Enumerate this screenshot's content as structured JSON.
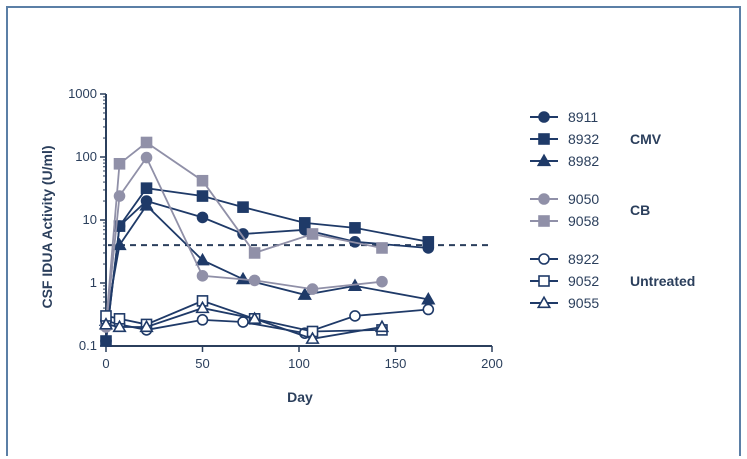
{
  "chart_data": {
    "type": "line",
    "title": "",
    "xlabel": "Day",
    "ylabel": "CSF IDUA Activity (U/ml)",
    "xlim": [
      0,
      200
    ],
    "ylim": [
      0.1,
      1000
    ],
    "yscale": "log",
    "x_ticks": [
      "0",
      "50",
      "100",
      "150",
      "200"
    ],
    "y_ticks": [
      "0.1",
      "1",
      "10",
      "100",
      "1000"
    ],
    "grid": false,
    "legend_placement": "right",
    "reference_line": {
      "y": 4,
      "style": "dashed",
      "color": "#2b3f5c"
    },
    "groups": [
      {
        "label": "CMV",
        "series": [
          "8911",
          "8932",
          "8982"
        ]
      },
      {
        "label": "CB",
        "series": [
          "9050",
          "9058"
        ]
      },
      {
        "label": "Untreated",
        "series": [
          "8922",
          "9052",
          "9055"
        ]
      }
    ],
    "series": [
      {
        "name": "8911",
        "color": "#1f3a68",
        "marker": "circle",
        "filled": true,
        "points": [
          [
            0,
            0.12
          ],
          [
            7,
            8
          ],
          [
            21,
            20
          ],
          [
            50,
            11
          ],
          [
            71,
            6
          ],
          [
            103,
            7
          ],
          [
            129,
            4.5
          ],
          [
            167,
            3.6
          ]
        ]
      },
      {
        "name": "8932",
        "color": "#1f3a68",
        "marker": "square",
        "filled": true,
        "points": [
          [
            0,
            0.12
          ],
          [
            7,
            8
          ],
          [
            21,
            32
          ],
          [
            50,
            24
          ],
          [
            71,
            16
          ],
          [
            103,
            9
          ],
          [
            129,
            7.5
          ],
          [
            167,
            4.5
          ]
        ]
      },
      {
        "name": "8982",
        "color": "#1f3a68",
        "marker": "triangle",
        "filled": true,
        "points": [
          [
            0,
            0.25
          ],
          [
            7,
            4
          ],
          [
            21,
            17
          ],
          [
            50,
            2.3
          ],
          [
            71,
            1.15
          ],
          [
            103,
            0.65
          ],
          [
            129,
            0.9
          ],
          [
            167,
            0.55
          ]
        ]
      },
      {
        "name": "9050",
        "color": "#9090a8",
        "marker": "circle",
        "filled": true,
        "points": [
          [
            0,
            0.2
          ],
          [
            7,
            24
          ],
          [
            21,
            98
          ],
          [
            50,
            1.3
          ],
          [
            77,
            1.1
          ],
          [
            107,
            0.8
          ],
          [
            143,
            1.05
          ]
        ]
      },
      {
        "name": "9058",
        "color": "#9090a8",
        "marker": "square",
        "filled": true,
        "points": [
          [
            0,
            0.22
          ],
          [
            7,
            78
          ],
          [
            21,
            170
          ],
          [
            50,
            42
          ],
          [
            77,
            3
          ],
          [
            107,
            6
          ],
          [
            143,
            3.6
          ]
        ]
      },
      {
        "name": "8922",
        "color": "#1f3a68",
        "marker": "circle",
        "filled": false,
        "points": [
          [
            0,
            0.25
          ],
          [
            7,
            0.22
          ],
          [
            21,
            0.18
          ],
          [
            50,
            0.26
          ],
          [
            71,
            0.24
          ],
          [
            103,
            0.16
          ],
          [
            129,
            0.3
          ],
          [
            167,
            0.38
          ]
        ]
      },
      {
        "name": "9052",
        "color": "#1f3a68",
        "marker": "square",
        "filled": false,
        "points": [
          [
            0,
            0.3
          ],
          [
            7,
            0.27
          ],
          [
            21,
            0.22
          ],
          [
            50,
            0.52
          ],
          [
            77,
            0.27
          ],
          [
            107,
            0.17
          ],
          [
            143,
            0.18
          ]
        ]
      },
      {
        "name": "9055",
        "color": "#1f3a68",
        "marker": "triangle",
        "filled": false,
        "points": [
          [
            0,
            0.22
          ],
          [
            7,
            0.2
          ],
          [
            21,
            0.2
          ],
          [
            50,
            0.4
          ],
          [
            77,
            0.27
          ],
          [
            107,
            0.13
          ],
          [
            143,
            0.2
          ]
        ]
      }
    ]
  }
}
